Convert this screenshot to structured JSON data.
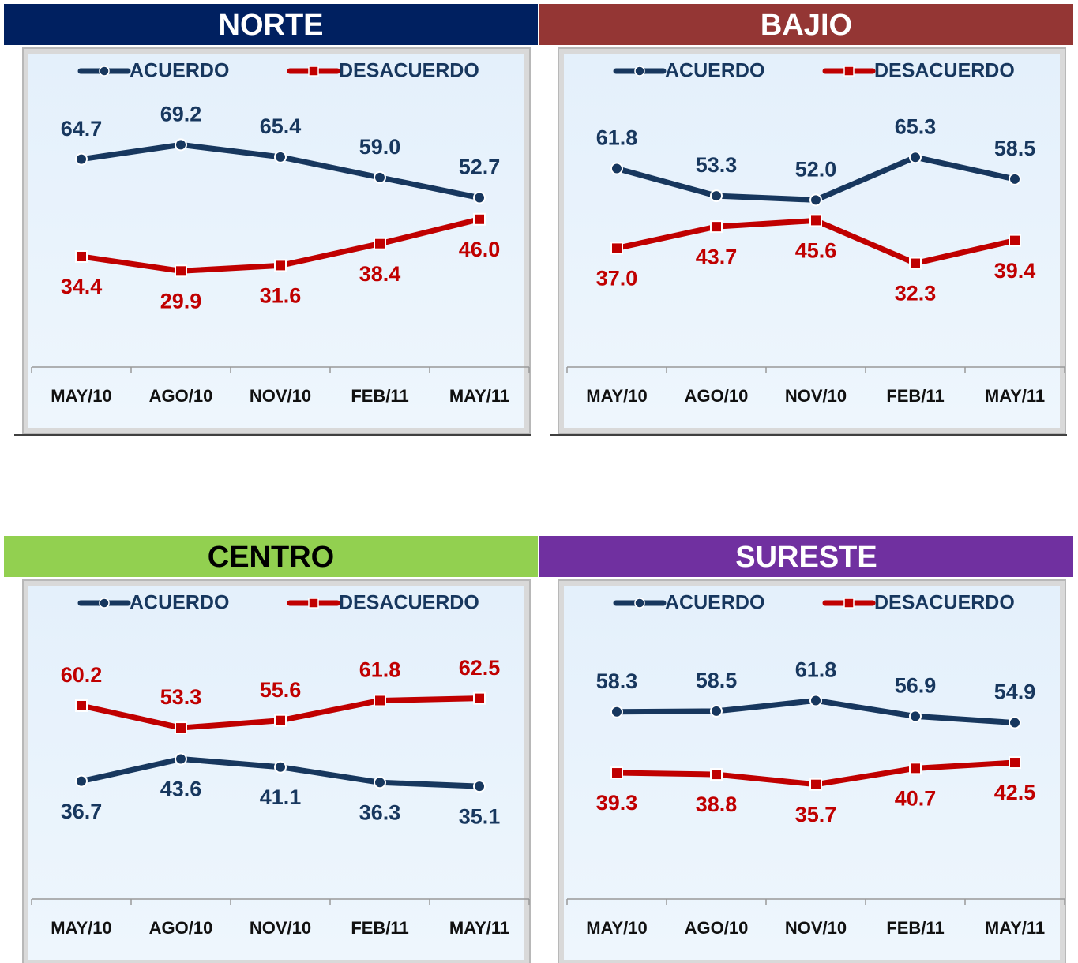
{
  "chart_data": [
    {
      "type": "line",
      "title": "NORTE",
      "header_color": "#002060",
      "title_color": "#ffffff",
      "categories": [
        "MAY/10",
        "AGO/10",
        "NOV/10",
        "FEB/11",
        "MAY/11"
      ],
      "ylim": [
        0,
        100
      ],
      "series": [
        {
          "name": "ACUERDO",
          "color": "#17375e",
          "marker": "circle",
          "values": [
            64.7,
            69.2,
            65.4,
            59.0,
            52.7
          ],
          "value_labels": [
            "64.7",
            "69.2",
            "65.4",
            "59.0",
            "52.7"
          ]
        },
        {
          "name": "DESACUERDO",
          "color": "#c00000",
          "marker": "square",
          "values": [
            34.4,
            29.9,
            31.6,
            38.4,
            46.0
          ],
          "value_labels": [
            "34.4",
            "29.9",
            "31.6",
            "38.4",
            "46.0"
          ]
        }
      ]
    },
    {
      "type": "line",
      "title": "BAJIO",
      "header_color": "#943634",
      "title_color": "#ffffff",
      "categories": [
        "MAY/10",
        "AGO/10",
        "NOV/10",
        "FEB/11",
        "MAY/11"
      ],
      "ylim": [
        0,
        100
      ],
      "series": [
        {
          "name": "ACUERDO",
          "color": "#17375e",
          "marker": "circle",
          "values": [
            61.8,
            53.3,
            52.0,
            65.3,
            58.5
          ],
          "value_labels": [
            "61.8",
            "53.3",
            "52.0",
            "65.3",
            "58.5"
          ]
        },
        {
          "name": "DESACUERDO",
          "color": "#c00000",
          "marker": "square",
          "values": [
            37.0,
            43.7,
            45.6,
            32.3,
            39.4
          ],
          "value_labels": [
            "37.0",
            "43.7",
            "45.6",
            "32.3",
            "39.4"
          ]
        }
      ]
    },
    {
      "type": "line",
      "title": "CENTRO",
      "header_color": "#92d050",
      "title_color": "#000000",
      "categories": [
        "MAY/10",
        "AGO/10",
        "NOV/10",
        "FEB/11",
        "MAY/11"
      ],
      "ylim": [
        0,
        100
      ],
      "series": [
        {
          "name": "ACUERDO",
          "color": "#17375e",
          "marker": "circle",
          "values": [
            36.7,
            43.6,
            41.1,
            36.3,
            35.1
          ],
          "value_labels": [
            "36.7",
            "43.6",
            "41.1",
            "36.3",
            "35.1"
          ]
        },
        {
          "name": "DESACUERDO",
          "color": "#c00000",
          "marker": "square",
          "values": [
            60.2,
            53.3,
            55.6,
            61.8,
            62.5
          ],
          "value_labels": [
            "60.2",
            "53.3",
            "55.6",
            "61.8",
            "62.5"
          ]
        }
      ]
    },
    {
      "type": "line",
      "title": "SURESTE",
      "header_color": "#7030a0",
      "title_color": "#ffffff",
      "categories": [
        "MAY/10",
        "AGO/10",
        "NOV/10",
        "FEB/11",
        "MAY/11"
      ],
      "ylim": [
        0,
        100
      ],
      "series": [
        {
          "name": "ACUERDO",
          "color": "#17375e",
          "marker": "circle",
          "values": [
            58.3,
            58.5,
            61.8,
            56.9,
            54.9
          ],
          "value_labels": [
            "58.3",
            "58.5",
            "61.8",
            "56.9",
            "54.9"
          ]
        },
        {
          "name": "DESACUERDO",
          "color": "#c00000",
          "marker": "square",
          "values": [
            39.3,
            38.8,
            35.7,
            40.7,
            42.5
          ],
          "value_labels": [
            "39.3",
            "38.8",
            "35.7",
            "40.7",
            "42.5"
          ]
        }
      ]
    }
  ]
}
